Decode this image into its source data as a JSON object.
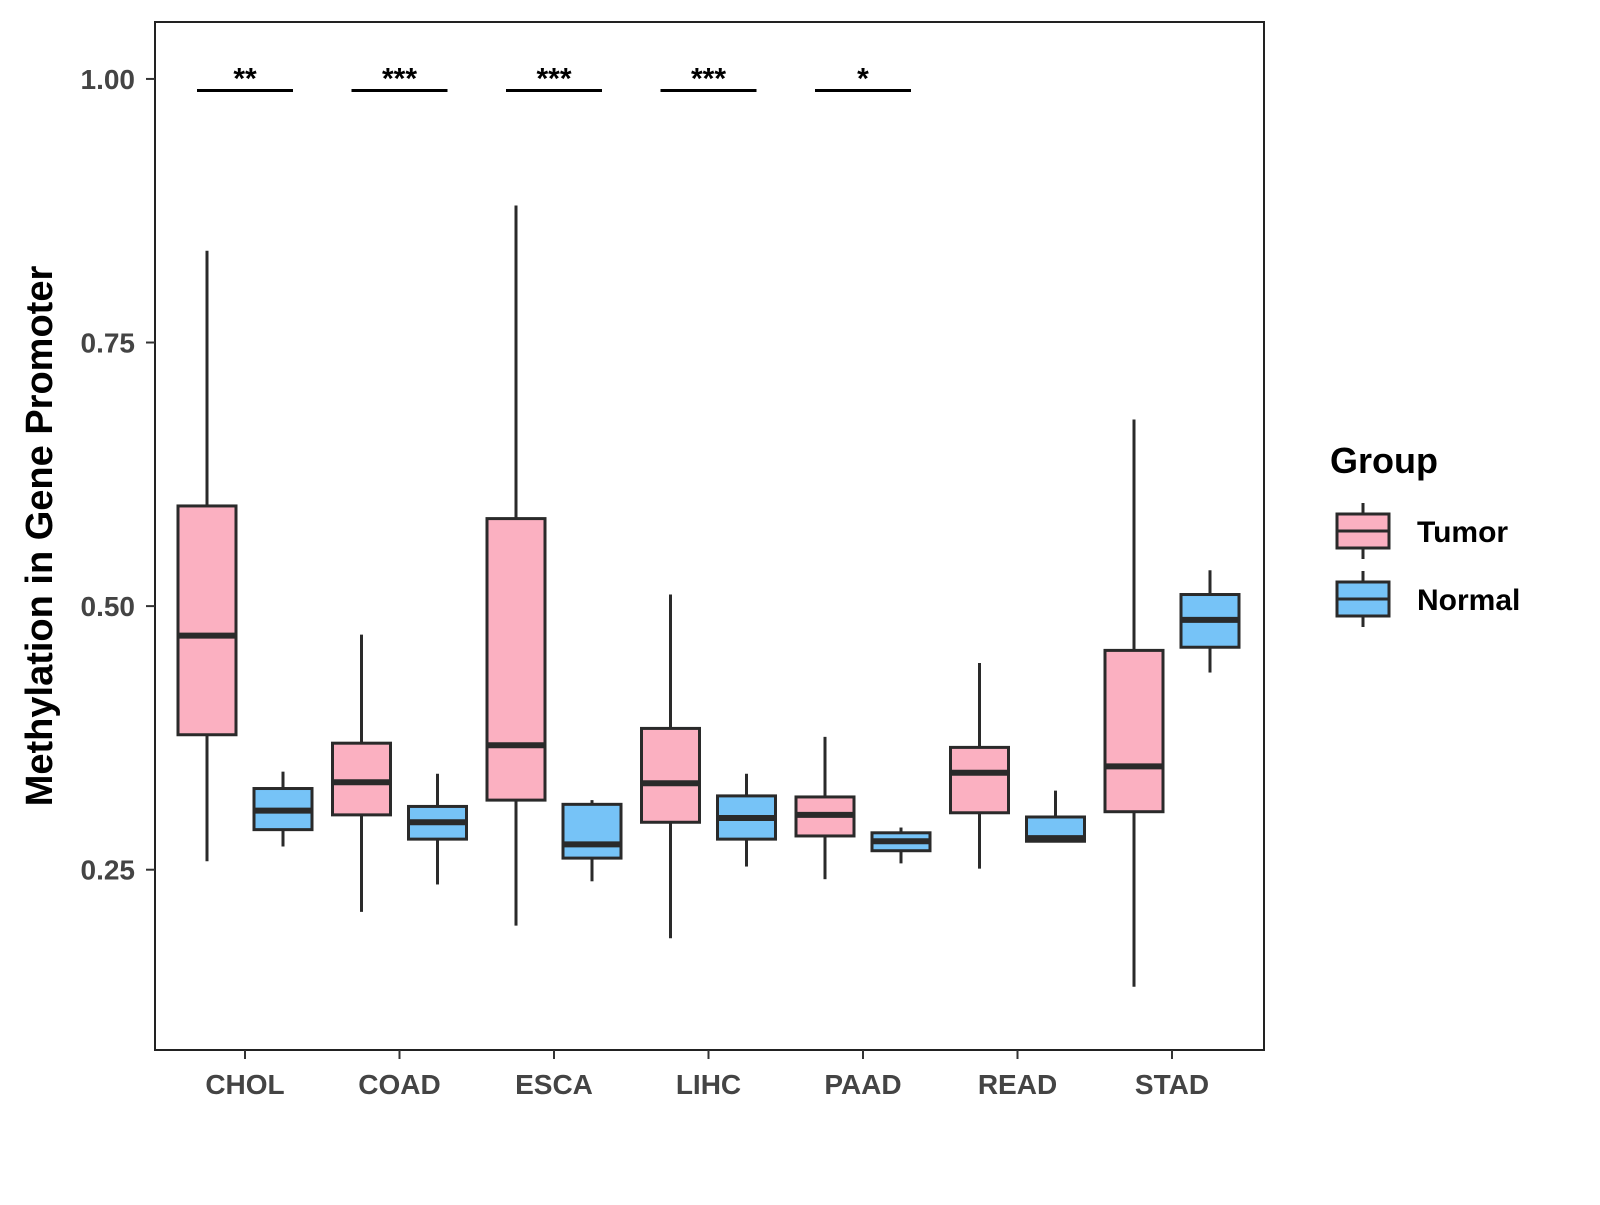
{
  "chart_data": {
    "type": "boxplot",
    "title": "",
    "xlabel": "",
    "ylabel": "Methylation in Gene Promoter",
    "ylim": [
      0.079,
      1.054
    ],
    "yticks": [
      0.25,
      0.5,
      0.75,
      1.0
    ],
    "ytick_labels": [
      "0.25",
      "0.50",
      "0.75",
      "1.00"
    ],
    "grid": false,
    "categories": [
      "CHOL",
      "COAD",
      "ESCA",
      "LIHC",
      "PAAD",
      "READ",
      "STAD"
    ],
    "legend": {
      "title": "Group",
      "placement": "right",
      "entries": [
        "Tumor",
        "Normal"
      ]
    },
    "colors": {
      "Tumor": "#fbb0c1",
      "Normal": "#76c3f7",
      "stroke": "#2a2a2a"
    },
    "series": [
      {
        "name": "Tumor",
        "stats": [
          {
            "min": 0.258,
            "q1": 0.378,
            "median": 0.472,
            "q3": 0.595,
            "max": 0.837
          },
          {
            "min": 0.21,
            "q1": 0.302,
            "median": 0.333,
            "q3": 0.37,
            "max": 0.473
          },
          {
            "min": 0.197,
            "q1": 0.316,
            "median": 0.368,
            "q3": 0.583,
            "max": 0.88
          },
          {
            "min": 0.185,
            "q1": 0.295,
            "median": 0.332,
            "q3": 0.384,
            "max": 0.511
          },
          {
            "min": 0.241,
            "q1": 0.282,
            "median": 0.302,
            "q3": 0.319,
            "max": 0.376
          },
          {
            "min": 0.251,
            "q1": 0.304,
            "median": 0.342,
            "q3": 0.366,
            "max": 0.446
          },
          {
            "min": 0.139,
            "q1": 0.305,
            "median": 0.348,
            "q3": 0.458,
            "max": 0.677
          }
        ]
      },
      {
        "name": "Normal",
        "stats": [
          {
            "min": 0.272,
            "q1": 0.288,
            "median": 0.306,
            "q3": 0.327,
            "max": 0.343
          },
          {
            "min": 0.236,
            "q1": 0.279,
            "median": 0.295,
            "q3": 0.31,
            "max": 0.341
          },
          {
            "min": 0.239,
            "q1": 0.261,
            "median": 0.274,
            "q3": 0.312,
            "max": 0.316
          },
          {
            "min": 0.253,
            "q1": 0.279,
            "median": 0.299,
            "q3": 0.32,
            "max": 0.341
          },
          {
            "min": 0.256,
            "q1": 0.268,
            "median": 0.277,
            "q3": 0.285,
            "max": 0.29
          },
          {
            "min": 0.277,
            "q1": 0.277,
            "median": 0.28,
            "q3": 0.3,
            "max": 0.325
          },
          {
            "min": 0.437,
            "q1": 0.461,
            "median": 0.487,
            "q3": 0.511,
            "max": 0.534
          }
        ]
      }
    ],
    "significance": [
      {
        "category": "CHOL",
        "label": "**",
        "y": 0.989
      },
      {
        "category": "COAD",
        "label": "***",
        "y": 0.989
      },
      {
        "category": "ESCA",
        "label": "***",
        "y": 0.989
      },
      {
        "category": "LIHC",
        "label": "***",
        "y": 0.989
      },
      {
        "category": "PAAD",
        "label": "*",
        "y": 0.989
      }
    ]
  }
}
